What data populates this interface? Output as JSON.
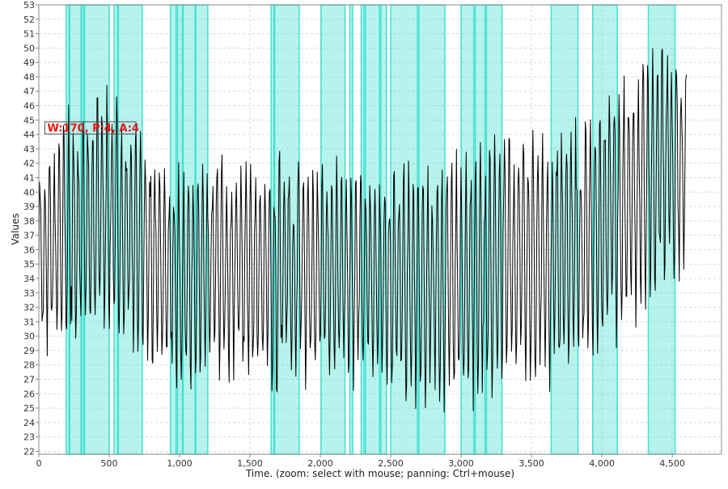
{
  "chart_data": {
    "type": "line",
    "title": "",
    "xlabel": "Time. (zoom: select with mouse; panning: Ctrl+mouse)",
    "ylabel": "Values",
    "xlim": [
      0,
      4850
    ],
    "ylim": [
      21.8,
      53
    ],
    "x_ticks": [
      0,
      500,
      1000,
      1500,
      2000,
      2500,
      3000,
      3500,
      4000,
      4500
    ],
    "x_tick_labels": [
      "0",
      "500",
      "1,000",
      "1,500",
      "2,000",
      "2,500",
      "3,000",
      "3,500",
      "4,000",
      "4,500"
    ],
    "y_ticks": [
      22,
      23,
      24,
      25,
      26,
      27,
      28,
      29,
      30,
      31,
      32,
      33,
      34,
      35,
      36,
      37,
      38,
      39,
      40,
      41,
      42,
      43,
      44,
      45,
      46,
      47,
      48,
      49,
      50,
      51,
      52,
      53
    ],
    "y_tick_labels": [
      "22",
      "23",
      "24",
      "25",
      "26",
      "27",
      "28",
      "29",
      "30",
      "31",
      "32",
      "33",
      "34",
      "35",
      "36",
      "37",
      "38",
      "39",
      "40",
      "41",
      "42",
      "43",
      "44",
      "45",
      "46",
      "47",
      "48",
      "49",
      "50",
      "51",
      "52",
      "53"
    ],
    "grid": true,
    "series": [
      {
        "color": "#000000",
        "x_range": [
          0,
          4600
        ],
        "envelope": [
          {
            "x": 0,
            "low": 28,
            "high": 42
          },
          {
            "x": 200,
            "low": 28.5,
            "high": 46
          },
          {
            "x": 500,
            "low": 29.5,
            "high": 47.5
          },
          {
            "x": 750,
            "low": 28,
            "high": 44
          },
          {
            "x": 1000,
            "low": 26,
            "high": 42
          },
          {
            "x": 1250,
            "low": 27,
            "high": 43
          },
          {
            "x": 1500,
            "low": 26.5,
            "high": 42
          },
          {
            "x": 1750,
            "low": 26,
            "high": 43
          },
          {
            "x": 2000,
            "low": 26.5,
            "high": 42.5
          },
          {
            "x": 2500,
            "low": 25.5,
            "high": 42.5
          },
          {
            "x": 3000,
            "low": 24,
            "high": 43
          },
          {
            "x": 3300,
            "low": 26,
            "high": 45
          },
          {
            "x": 3600,
            "low": 26,
            "high": 44
          },
          {
            "x": 3900,
            "low": 27.5,
            "high": 46
          },
          {
            "x": 4200,
            "low": 30,
            "high": 49.5
          },
          {
            "x": 4400,
            "low": 33,
            "high": 51.5
          },
          {
            "x": 4600,
            "low": 34,
            "high": 50
          }
        ]
      }
    ],
    "highlight_color": "#40e0d0",
    "highlight_regions": [
      [
        195,
        215
      ],
      [
        220,
        300
      ],
      [
        305,
        320
      ],
      [
        325,
        500
      ],
      [
        535,
        560
      ],
      [
        565,
        735
      ],
      [
        935,
        975
      ],
      [
        985,
        1020
      ],
      [
        1025,
        1110
      ],
      [
        1115,
        1200
      ],
      [
        1650,
        1670
      ],
      [
        1675,
        1850
      ],
      [
        2005,
        2175
      ],
      [
        2210,
        2230
      ],
      [
        2290,
        2310
      ],
      [
        2320,
        2420
      ],
      [
        2430,
        2470
      ],
      [
        2500,
        2690
      ],
      [
        2700,
        2885
      ],
      [
        3000,
        3090
      ],
      [
        3100,
        3170
      ],
      [
        3180,
        3290
      ],
      [
        3640,
        3830
      ],
      [
        3935,
        4110
      ],
      [
        4330,
        4520
      ]
    ],
    "annotations": [
      {
        "text": "W:170, P:4, A:4",
        "x": 60,
        "y": 44.2
      }
    ]
  }
}
